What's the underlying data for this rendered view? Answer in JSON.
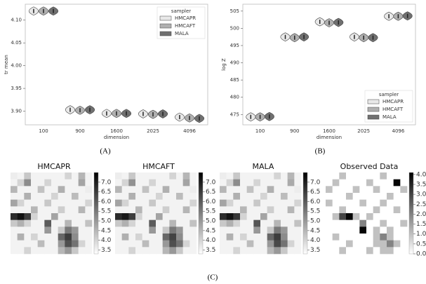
{
  "chart_data": [
    {
      "type": "violin",
      "xlabel": "dimension",
      "ylabel": "tr mean",
      "categories": [
        "100",
        "900",
        "1600",
        "2025",
        "4096"
      ],
      "series": [
        {
          "name": "HMCAPR",
          "color": "#e8e8e8",
          "values": [
            4.12,
            3.903,
            3.895,
            3.894,
            3.887
          ]
        },
        {
          "name": "HMCAFT",
          "color": "#b0b0b0",
          "values": [
            4.12,
            3.902,
            3.895,
            3.893,
            3.885
          ]
        },
        {
          "name": "MALA",
          "color": "#707070",
          "values": [
            4.12,
            3.903,
            3.895,
            3.894,
            3.884
          ]
        }
      ],
      "ylim": [
        3.87,
        4.135
      ],
      "yticks": [
        {
          "value": 3.9,
          "label": "3.90"
        },
        {
          "value": 3.95,
          "label": "3.95"
        },
        {
          "value": 4.0,
          "label": "4.00"
        },
        {
          "value": 4.05,
          "label": "4.05"
        },
        {
          "value": 4.1,
          "label": "4.10"
        }
      ],
      "legend_title": "sampler",
      "legend_loc": "upper right"
    },
    {
      "type": "violin",
      "xlabel": "dimension",
      "ylabel": "log Z",
      "categories": [
        "100",
        "900",
        "1600",
        "2025",
        "4096"
      ],
      "series": [
        {
          "name": "HMCAPR",
          "color": "#e8e8e8",
          "values": [
            474.3,
            497.5,
            501.9,
            497.5,
            503.5
          ]
        },
        {
          "name": "HMCAFT",
          "color": "#b0b0b0",
          "values": [
            474.3,
            497.3,
            501.6,
            497.3,
            503.5
          ]
        },
        {
          "name": "MALA",
          "color": "#707070",
          "values": [
            474.4,
            497.5,
            501.7,
            497.3,
            503.6
          ]
        }
      ],
      "ylim": [
        472,
        507
      ],
      "yticks": [
        475,
        480,
        485,
        490,
        495,
        500,
        505
      ],
      "legend_title": "sampler",
      "legend_loc": "lower right"
    },
    {
      "type": "heatmap",
      "title": "HMCAPR",
      "clim": [
        3.3,
        7.5
      ],
      "cticks": [
        {
          "value": 3.5,
          "label": "3.5"
        },
        {
          "value": 4.0,
          "label": "4.0"
        },
        {
          "value": 4.5,
          "label": "4.5"
        },
        {
          "value": 5.0,
          "label": "5.0"
        },
        {
          "value": 5.5,
          "label": "5.5"
        },
        {
          "value": 6.0,
          "label": "6.0"
        },
        {
          "value": 6.5,
          "label": "6.5"
        },
        {
          "value": 7.0,
          "label": "7.0"
        }
      ],
      "z": [
        [
          3.6,
          3.5,
          4.2,
          3.5,
          3.5,
          3.5,
          3.5,
          3.5,
          4.0,
          3.5,
          4.5,
          3.5
        ],
        [
          3.5,
          4.0,
          5.2,
          3.5,
          3.5,
          4.0,
          3.5,
          3.5,
          3.5,
          3.5,
          4.8,
          3.5
        ],
        [
          4.5,
          3.5,
          3.5,
          3.5,
          4.3,
          3.5,
          3.5,
          4.6,
          3.5,
          3.5,
          3.5,
          3.6
        ],
        [
          3.5,
          3.5,
          4.6,
          3.5,
          3.5,
          3.5,
          4.0,
          3.5,
          3.5,
          4.4,
          3.5,
          3.5
        ],
        [
          4.8,
          4.0,
          3.5,
          3.5,
          3.5,
          4.2,
          3.5,
          3.5,
          3.5,
          3.5,
          3.5,
          4.0
        ],
        [
          3.5,
          3.5,
          3.5,
          4.5,
          3.5,
          3.5,
          3.5,
          4.1,
          3.5,
          3.5,
          4.5,
          3.5
        ],
        [
          6.8,
          7.2,
          6.5,
          4.0,
          3.5,
          3.5,
          4.8,
          3.5,
          3.5,
          3.5,
          3.5,
          3.5
        ],
        [
          4.2,
          4.6,
          4.0,
          3.5,
          3.5,
          6.0,
          3.5,
          3.5,
          4.5,
          3.5,
          3.5,
          4.3
        ],
        [
          3.5,
          3.5,
          3.5,
          3.5,
          3.5,
          5.0,
          3.5,
          4.2,
          5.5,
          5.0,
          3.5,
          3.5
        ],
        [
          3.5,
          4.6,
          3.5,
          4.0,
          3.5,
          3.5,
          3.5,
          5.8,
          6.5,
          5.2,
          3.5,
          3.5
        ],
        [
          3.5,
          3.5,
          3.5,
          3.5,
          4.4,
          3.5,
          3.5,
          5.0,
          6.2,
          5.6,
          4.0,
          3.5
        ],
        [
          3.5,
          3.5,
          4.0,
          3.5,
          3.5,
          3.5,
          3.5,
          4.5,
          5.0,
          4.2,
          3.5,
          3.5
        ]
      ]
    },
    {
      "type": "heatmap",
      "title": "HMCAFT",
      "clim": [
        3.3,
        7.5
      ],
      "cticks": [
        {
          "value": 3.5,
          "label": "3.5"
        },
        {
          "value": 4.0,
          "label": "4.0"
        },
        {
          "value": 4.5,
          "label": "4.5"
        },
        {
          "value": 5.0,
          "label": "5.0"
        },
        {
          "value": 5.5,
          "label": "5.5"
        },
        {
          "value": 6.0,
          "label": "6.0"
        },
        {
          "value": 6.5,
          "label": "6.5"
        },
        {
          "value": 7.0,
          "label": "7.0"
        }
      ],
      "z": [
        [
          3.6,
          3.5,
          4.2,
          3.5,
          3.5,
          3.5,
          3.5,
          3.5,
          4.0,
          3.5,
          4.5,
          3.5
        ],
        [
          3.5,
          4.0,
          5.1,
          3.5,
          3.5,
          4.0,
          3.5,
          3.5,
          3.5,
          3.5,
          4.8,
          3.5
        ],
        [
          4.5,
          3.5,
          3.5,
          3.5,
          4.3,
          3.5,
          3.5,
          4.6,
          3.5,
          3.5,
          3.5,
          3.6
        ],
        [
          3.5,
          3.5,
          4.6,
          3.5,
          3.5,
          3.5,
          4.0,
          3.5,
          3.5,
          4.4,
          3.5,
          3.5
        ],
        [
          4.8,
          4.0,
          3.5,
          3.5,
          3.5,
          4.2,
          3.5,
          3.5,
          3.5,
          3.5,
          3.5,
          4.0
        ],
        [
          3.5,
          3.5,
          3.5,
          4.5,
          3.5,
          3.5,
          3.5,
          4.1,
          3.5,
          3.5,
          4.5,
          3.5
        ],
        [
          6.8,
          7.1,
          6.5,
          4.0,
          3.5,
          3.5,
          4.8,
          3.5,
          3.5,
          3.5,
          3.5,
          3.5
        ],
        [
          4.2,
          4.6,
          4.0,
          3.5,
          3.5,
          6.0,
          3.5,
          3.5,
          4.5,
          3.5,
          3.5,
          4.3
        ],
        [
          3.5,
          3.5,
          3.5,
          3.5,
          3.5,
          5.0,
          3.5,
          4.2,
          5.5,
          5.0,
          3.5,
          3.5
        ],
        [
          3.5,
          4.6,
          3.5,
          4.0,
          3.5,
          3.5,
          3.5,
          5.8,
          6.4,
          5.2,
          3.5,
          3.5
        ],
        [
          3.5,
          3.5,
          3.5,
          3.5,
          4.4,
          3.5,
          3.5,
          5.0,
          6.2,
          5.6,
          4.0,
          3.5
        ],
        [
          3.5,
          3.5,
          4.0,
          3.5,
          3.5,
          3.5,
          3.5,
          4.5,
          5.0,
          4.2,
          3.5,
          3.5
        ]
      ]
    },
    {
      "type": "heatmap",
      "title": "MALA",
      "clim": [
        3.3,
        7.5
      ],
      "cticks": [
        {
          "value": 3.5,
          "label": "3.5"
        },
        {
          "value": 4.0,
          "label": "4.0"
        },
        {
          "value": 4.5,
          "label": "4.5"
        },
        {
          "value": 5.0,
          "label": "5.0"
        },
        {
          "value": 5.5,
          "label": "5.5"
        },
        {
          "value": 6.0,
          "label": "6.0"
        },
        {
          "value": 6.5,
          "label": "6.5"
        },
        {
          "value": 7.0,
          "label": "7.0"
        }
      ],
      "z": [
        [
          3.6,
          3.5,
          4.2,
          3.5,
          3.5,
          3.5,
          3.5,
          3.5,
          4.0,
          3.5,
          4.5,
          3.5
        ],
        [
          3.5,
          4.0,
          5.2,
          3.5,
          3.5,
          4.0,
          3.5,
          3.5,
          3.5,
          3.5,
          4.7,
          3.5
        ],
        [
          4.5,
          3.5,
          3.5,
          3.5,
          4.3,
          3.5,
          3.5,
          4.6,
          3.5,
          3.5,
          3.5,
          3.6
        ],
        [
          3.5,
          3.5,
          4.6,
          3.5,
          3.5,
          3.5,
          4.0,
          3.5,
          3.5,
          4.4,
          3.5,
          3.5
        ],
        [
          4.8,
          4.0,
          3.5,
          3.5,
          3.5,
          4.2,
          3.5,
          3.5,
          3.5,
          3.5,
          3.5,
          4.0
        ],
        [
          3.5,
          3.5,
          3.5,
          4.5,
          3.5,
          3.5,
          3.5,
          4.1,
          3.5,
          3.5,
          4.5,
          3.5
        ],
        [
          6.8,
          7.2,
          6.6,
          4.0,
          3.5,
          3.5,
          4.8,
          3.5,
          3.5,
          3.5,
          3.5,
          3.5
        ],
        [
          4.2,
          4.6,
          4.0,
          3.5,
          3.5,
          6.1,
          3.5,
          3.5,
          4.5,
          3.5,
          3.5,
          4.3
        ],
        [
          3.5,
          3.5,
          3.5,
          3.5,
          3.5,
          5.0,
          3.5,
          4.2,
          5.5,
          5.0,
          3.5,
          3.5
        ],
        [
          3.5,
          4.6,
          3.5,
          4.0,
          3.5,
          3.5,
          3.5,
          5.8,
          6.5,
          5.2,
          3.5,
          3.5
        ],
        [
          3.5,
          3.5,
          3.5,
          3.5,
          4.4,
          3.5,
          3.5,
          5.0,
          6.3,
          5.6,
          4.0,
          3.5
        ],
        [
          3.5,
          3.5,
          4.0,
          3.5,
          3.5,
          3.5,
          3.5,
          4.5,
          5.0,
          4.2,
          3.5,
          3.5
        ]
      ]
    },
    {
      "type": "heatmap",
      "title": "Observed Data",
      "clim": [
        0,
        4.1
      ],
      "cticks": [
        {
          "value": 0,
          "label": "0.0"
        },
        {
          "value": 0.5,
          "label": "0.5"
        },
        {
          "value": 1,
          "label": "1.0"
        },
        {
          "value": 1.5,
          "label": "1.5"
        },
        {
          "value": 2,
          "label": "2.0"
        },
        {
          "value": 2.5,
          "label": "2.5"
        },
        {
          "value": 3,
          "label": "3.0"
        },
        {
          "value": 3.5,
          "label": "3.5"
        },
        {
          "value": 4,
          "label": "4.0"
        }
      ],
      "z": [
        [
          0,
          0,
          1,
          0,
          0,
          0,
          0,
          0,
          1,
          0,
          0,
          0
        ],
        [
          0,
          1,
          0,
          0,
          0,
          0,
          1,
          0,
          0,
          0,
          4,
          0
        ],
        [
          1,
          0,
          0,
          0,
          1,
          0,
          0,
          1,
          0,
          0,
          0,
          1
        ],
        [
          0,
          0,
          0,
          1,
          0,
          0,
          0,
          0,
          0,
          1,
          0,
          0
        ],
        [
          1,
          0,
          0,
          0,
          0,
          1,
          0,
          0,
          1,
          0,
          0,
          0
        ],
        [
          0,
          0,
          1,
          0,
          0,
          0,
          0,
          1,
          0,
          0,
          1,
          0
        ],
        [
          0,
          1,
          3,
          4,
          1,
          0,
          1,
          0,
          0,
          0,
          0,
          0
        ],
        [
          0,
          0,
          0,
          0,
          0,
          2,
          0,
          0,
          1,
          0,
          0,
          1
        ],
        [
          0,
          0,
          0,
          0,
          0,
          4,
          0,
          1,
          0,
          1,
          0,
          0
        ],
        [
          0,
          1,
          0,
          0,
          0,
          0,
          0,
          1,
          2,
          1,
          0,
          0
        ],
        [
          0,
          0,
          0,
          1,
          0,
          0,
          0,
          1,
          1,
          2,
          1,
          0
        ],
        [
          0,
          0,
          1,
          0,
          0,
          0,
          1,
          0,
          1,
          1,
          0,
          0
        ]
      ]
    }
  ],
  "captions": [
    "(A)",
    "(B)",
    "(C)"
  ]
}
